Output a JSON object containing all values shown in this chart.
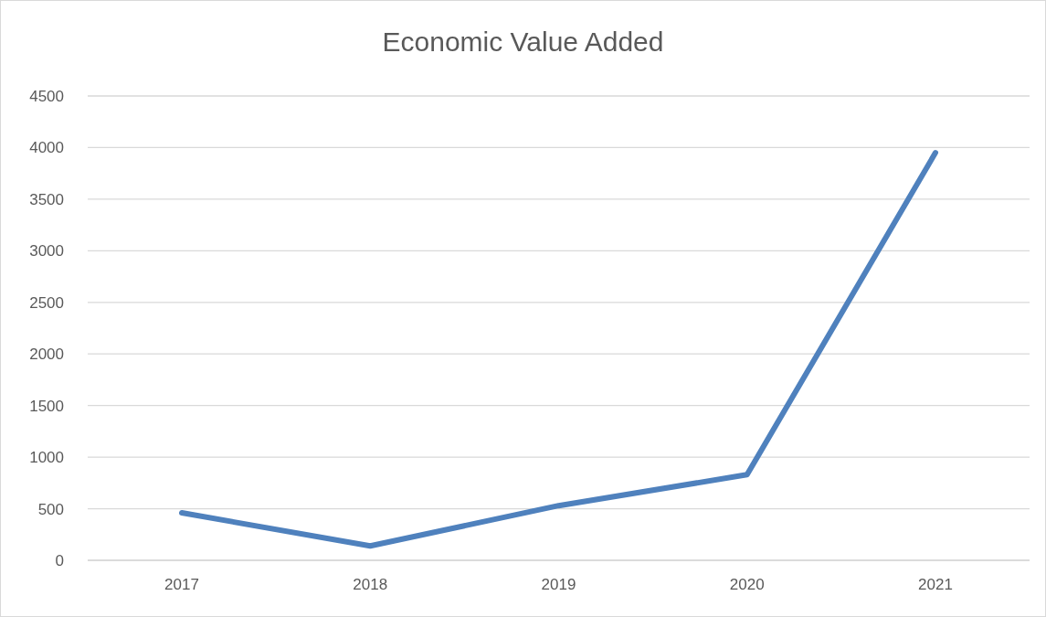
{
  "chart_data": {
    "type": "line",
    "title": "Economic Value Added",
    "categories": [
      "2017",
      "2018",
      "2019",
      "2020",
      "2021"
    ],
    "series": [
      {
        "color": "#4f81bd",
        "values": [
          460,
          140,
          530,
          830,
          3950
        ]
      }
    ],
    "ylim": [
      0,
      4500
    ],
    "yticks": [
      0,
      500,
      1000,
      1500,
      2000,
      2500,
      3000,
      3500,
      4000,
      4500
    ],
    "grid": "y",
    "legend": false,
    "marker": "none",
    "line_style": "solid"
  }
}
